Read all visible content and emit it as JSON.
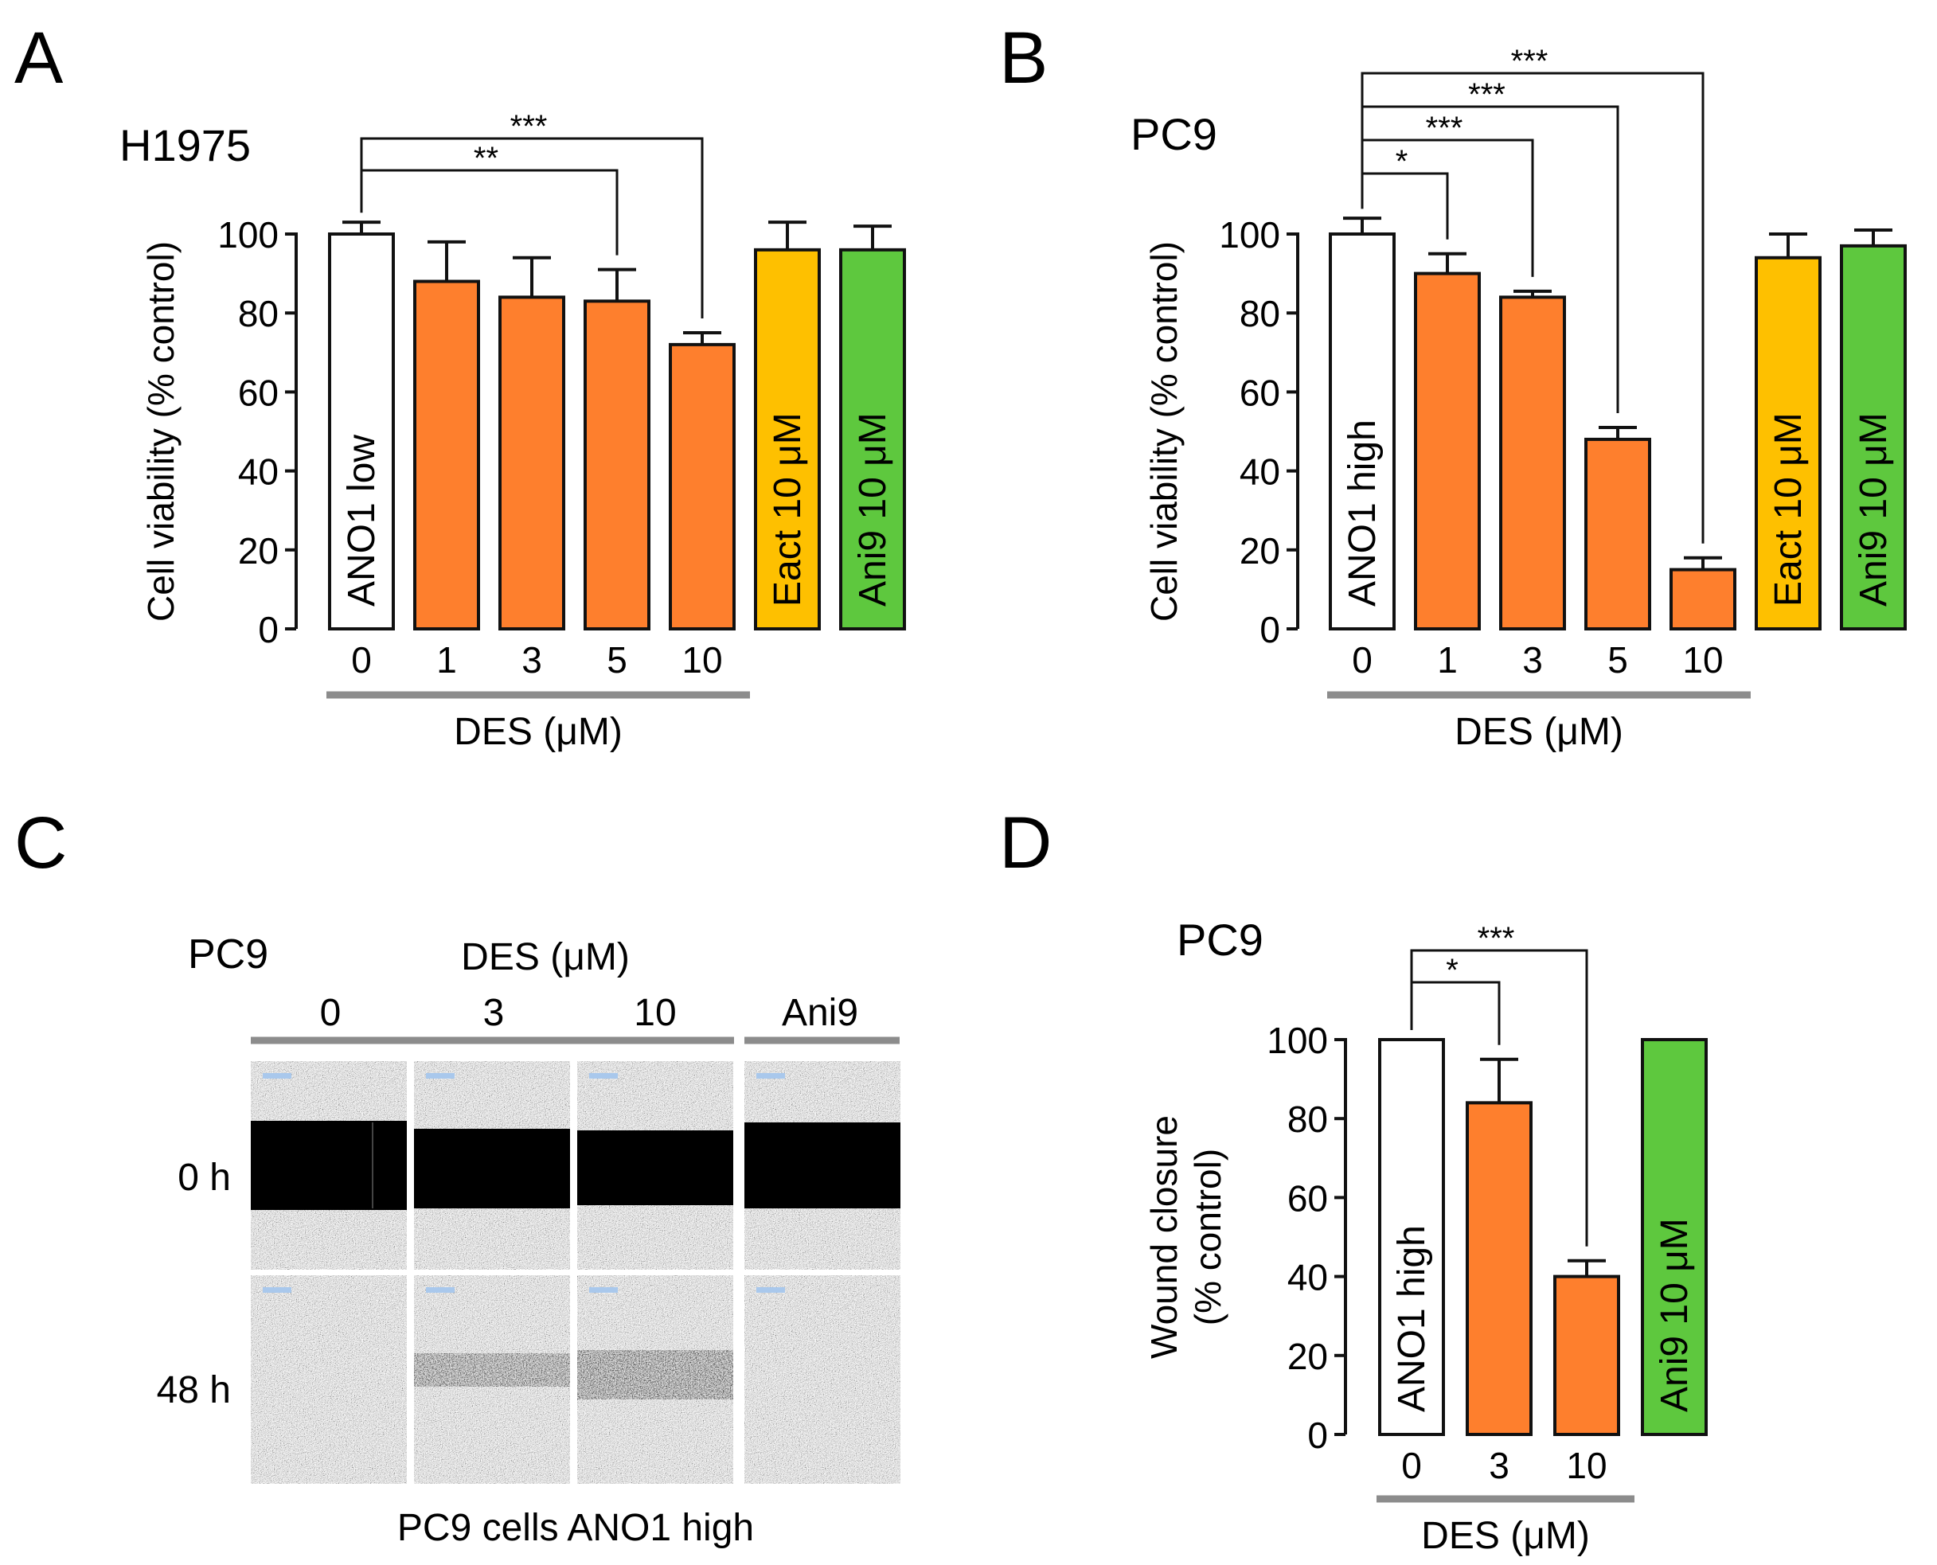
{
  "colors": {
    "control": "#ffffff",
    "des": "#fe7f2d",
    "eact": "#fec000",
    "ani9": "#5ec83e",
    "axis": "#111111",
    "group_line": "#8c8c8c",
    "scale_bar": "#a9c8ec"
  },
  "panels": {
    "A": {
      "letter": "A",
      "cell_line": "H1975"
    },
    "B": {
      "letter": "B",
      "cell_line": "PC9"
    },
    "C": {
      "letter": "C",
      "cell_line": "PC9",
      "group_label": "DES (μM)",
      "columns": [
        "0",
        "3",
        "10",
        "Ani9"
      ],
      "rows": [
        "0 h",
        "48 h"
      ],
      "caption": "PC9 cells ANO1 high"
    },
    "D": {
      "letter": "D",
      "cell_line": "PC9"
    }
  },
  "chart_data": [
    {
      "panel": "A",
      "type": "bar",
      "ylabel": "Cell viability (% control)",
      "ylim": [
        0,
        100
      ],
      "yticks": [
        0,
        20,
        40,
        60,
        80,
        100
      ],
      "group_label": "DES (μM)",
      "bars": [
        {
          "tick": "0",
          "inlabel": "ANO1 low",
          "value": 100,
          "error": 3,
          "color": "control",
          "group": true
        },
        {
          "tick": "1",
          "inlabel": "",
          "value": 88,
          "error": 10,
          "color": "des",
          "group": true
        },
        {
          "tick": "3",
          "inlabel": "",
          "value": 84,
          "error": 10,
          "color": "des",
          "group": true
        },
        {
          "tick": "5",
          "inlabel": "",
          "value": 83,
          "error": 8,
          "color": "des",
          "group": true
        },
        {
          "tick": "10",
          "inlabel": "",
          "value": 72,
          "error": 3,
          "color": "des",
          "group": true
        },
        {
          "tick": "",
          "inlabel": "Eact 10 μM",
          "value": 96,
          "error": 7,
          "color": "eact",
          "group": false
        },
        {
          "tick": "",
          "inlabel": "Ani9 10 μM",
          "value": 96,
          "error": 6,
          "color": "ani9",
          "group": false
        }
      ],
      "significance": [
        {
          "from": 0,
          "to": 4,
          "stars": "***"
        },
        {
          "from": 0,
          "to": 3,
          "stars": "**"
        }
      ]
    },
    {
      "panel": "B",
      "type": "bar",
      "ylabel": "Cell viability (% control)",
      "ylim": [
        0,
        100
      ],
      "yticks": [
        0,
        20,
        40,
        60,
        80,
        100
      ],
      "group_label": "DES (μM)",
      "bars": [
        {
          "tick": "0",
          "inlabel": "ANO1 high",
          "value": 100,
          "error": 4,
          "color": "control",
          "group": true
        },
        {
          "tick": "1",
          "inlabel": "",
          "value": 90,
          "error": 5,
          "color": "des",
          "group": true
        },
        {
          "tick": "3",
          "inlabel": "",
          "value": 84,
          "error": 1.5,
          "color": "des",
          "group": true
        },
        {
          "tick": "5",
          "inlabel": "",
          "value": 48,
          "error": 3,
          "color": "des",
          "group": true
        },
        {
          "tick": "10",
          "inlabel": "",
          "value": 15,
          "error": 3,
          "color": "des",
          "group": true
        },
        {
          "tick": "",
          "inlabel": "Eact 10 μM",
          "value": 94,
          "error": 6,
          "color": "eact",
          "group": false
        },
        {
          "tick": "",
          "inlabel": "Ani9 10 μM",
          "value": 97,
          "error": 4,
          "color": "ani9",
          "group": false
        }
      ],
      "significance": [
        {
          "from": 0,
          "to": 4,
          "stars": "***"
        },
        {
          "from": 0,
          "to": 3,
          "stars": "***"
        },
        {
          "from": 0,
          "to": 2,
          "stars": "***"
        },
        {
          "from": 0,
          "to": 1,
          "stars": "*"
        }
      ]
    },
    {
      "panel": "D",
      "type": "bar",
      "ylabel": "Wound closure",
      "ylabel2": "(% control)",
      "ylim": [
        0,
        100
      ],
      "yticks": [
        0,
        20,
        40,
        60,
        80,
        100
      ],
      "group_label": "DES (μM)",
      "bars": [
        {
          "tick": "0",
          "inlabel": "ANO1 high",
          "value": 100,
          "error": 0,
          "color": "control",
          "group": true
        },
        {
          "tick": "3",
          "inlabel": "",
          "value": 84,
          "error": 11,
          "color": "des",
          "group": true
        },
        {
          "tick": "10",
          "inlabel": "",
          "value": 40,
          "error": 4,
          "color": "des",
          "group": true
        },
        {
          "tick": "",
          "inlabel": "Ani9 10 μM",
          "value": 100,
          "error": 0,
          "color": "ani9",
          "group": false
        }
      ],
      "significance": [
        {
          "from": 0,
          "to": 2,
          "stars": "***"
        },
        {
          "from": 0,
          "to": 1,
          "stars": "*"
        }
      ]
    }
  ]
}
